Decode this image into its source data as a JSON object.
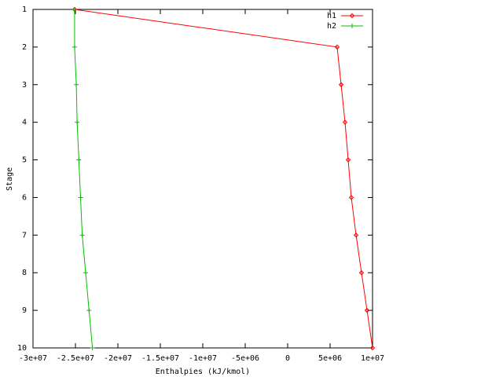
{
  "chart_data": {
    "type": "line",
    "xlabel": "Enthalpies (kJ/kmol)",
    "ylabel": "Stage",
    "xlim": [
      -30000000,
      10000000
    ],
    "xticks": [
      {
        "value": -30000000,
        "label": "-3e+07"
      },
      {
        "value": -25000000,
        "label": "-2.5e+07"
      },
      {
        "value": -20000000,
        "label": "-2e+07"
      },
      {
        "value": -15000000,
        "label": "-1.5e+07"
      },
      {
        "value": -10000000,
        "label": "-1e+07"
      },
      {
        "value": -5000000,
        "label": "-5e+06"
      },
      0,
      {
        "value": 5000000,
        "label": "5e+06"
      },
      {
        "value": 10000000,
        "label": "1e+07"
      }
    ],
    "ylim": [
      10,
      1
    ],
    "yticks": [
      1,
      2,
      3,
      4,
      5,
      6,
      7,
      8,
      9,
      10
    ],
    "legend": "top-right",
    "series": [
      {
        "name": "h1",
        "color": "#ff0000",
        "marker": "diamond",
        "x": [
          -25100000,
          5830000,
          6300000,
          6760000,
          7130000,
          7500000,
          8060000,
          8700000,
          9350000,
          10000000
        ],
        "values": [
          1,
          2,
          3,
          4,
          5,
          6,
          7,
          8,
          9,
          10
        ]
      },
      {
        "name": "h2",
        "color": "#00c000",
        "marker": "plus",
        "x": [
          -25100000,
          -25100000,
          -24900000,
          -24800000,
          -24600000,
          -24400000,
          -24200000,
          -23800000,
          -23400000,
          -23000000
        ],
        "values": [
          1,
          2,
          3,
          4,
          5,
          6,
          7,
          8,
          9,
          10
        ]
      }
    ]
  }
}
